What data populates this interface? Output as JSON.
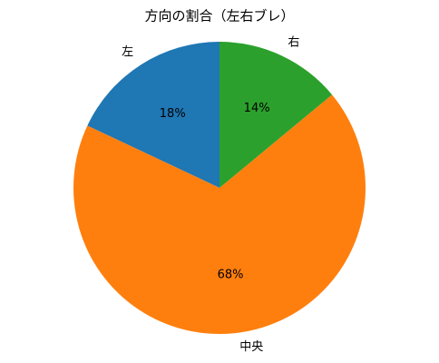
{
  "chart_data": {
    "type": "pie",
    "title": "方向の割合（左右ブレ）",
    "categories": [
      "左",
      "中央",
      "右"
    ],
    "values": [
      18,
      68,
      14
    ],
    "value_labels": [
      "18%",
      "68%",
      "14%"
    ],
    "colors": [
      "#1f77b4",
      "#ff7f0e",
      "#2ca02c"
    ]
  }
}
